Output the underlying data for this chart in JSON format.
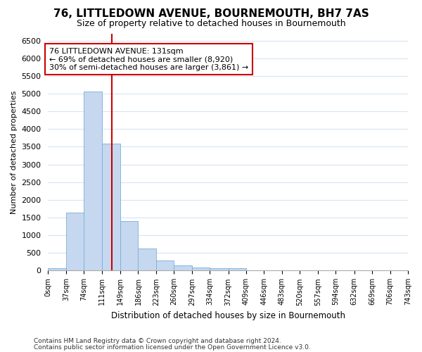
{
  "title": "76, LITTLEDOWN AVENUE, BOURNEMOUTH, BH7 7AS",
  "subtitle": "Size of property relative to detached houses in Bournemouth",
  "xlabel": "Distribution of detached houses by size in Bournemouth",
  "ylabel": "Number of detached properties",
  "footer_line1": "Contains HM Land Registry data © Crown copyright and database right 2024.",
  "footer_line2": "Contains public sector information licensed under the Open Government Licence v3.0.",
  "bin_edges": [
    0,
    37,
    74,
    111,
    149,
    186,
    223,
    260,
    297,
    334,
    372,
    409,
    446,
    483,
    520,
    557,
    594,
    632,
    669,
    706,
    743
  ],
  "bin_labels": [
    "0sqm",
    "37sqm",
    "74sqm",
    "111sqm",
    "149sqm",
    "186sqm",
    "223sqm",
    "260sqm",
    "297sqm",
    "334sqm",
    "372sqm",
    "409sqm",
    "446sqm",
    "483sqm",
    "520sqm",
    "557sqm",
    "594sqm",
    "632sqm",
    "669sqm",
    "706sqm",
    "743sqm"
  ],
  "bar_heights": [
    75,
    1640,
    5060,
    3590,
    1400,
    620,
    290,
    140,
    90,
    70,
    70,
    0,
    0,
    0,
    0,
    0,
    0,
    0,
    0,
    0
  ],
  "bar_color": "#c5d8f0",
  "bar_edgecolor": "#7aadd4",
  "grid_color": "#d8e4f0",
  "vline_sqm": 131,
  "vline_color": "#cc0000",
  "annotation_text": "76 LITTLEDOWN AVENUE: 131sqm\n← 69% of detached houses are smaller (8,920)\n30% of semi-detached houses are larger (3,861) →",
  "annotation_box_edgecolor": "#cc0000",
  "annotation_box_facecolor": "#ffffff",
  "ylim": [
    0,
    6700
  ],
  "yticks": [
    0,
    500,
    1000,
    1500,
    2000,
    2500,
    3000,
    3500,
    4000,
    4500,
    5000,
    5500,
    6000,
    6500
  ],
  "background_color": "#ffffff",
  "title_fontsize": 11,
  "subtitle_fontsize": 9
}
